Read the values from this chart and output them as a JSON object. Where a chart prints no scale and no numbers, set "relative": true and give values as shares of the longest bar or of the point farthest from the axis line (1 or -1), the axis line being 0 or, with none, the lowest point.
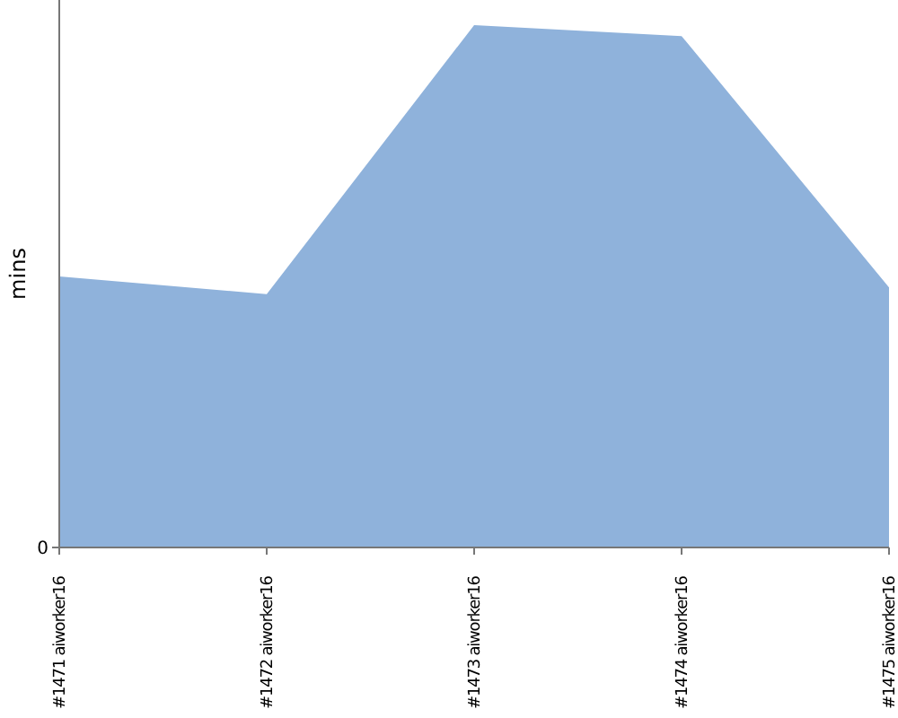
{
  "chart_data": {
    "type": "area",
    "relative": true,
    "ylabel": "mins",
    "categories": [
      "#1471 aiworker16",
      "#1472 aiworker16",
      "#1473 aiworker16",
      "#1474 aiworker16",
      "#1475 aiworker16"
    ],
    "series": [
      {
        "color": "#8fb2db",
        "values": [
          0.519,
          0.485,
          1,
          0.979,
          0.498
        ]
      }
    ],
    "annotations": [
      "0"
    ]
  }
}
